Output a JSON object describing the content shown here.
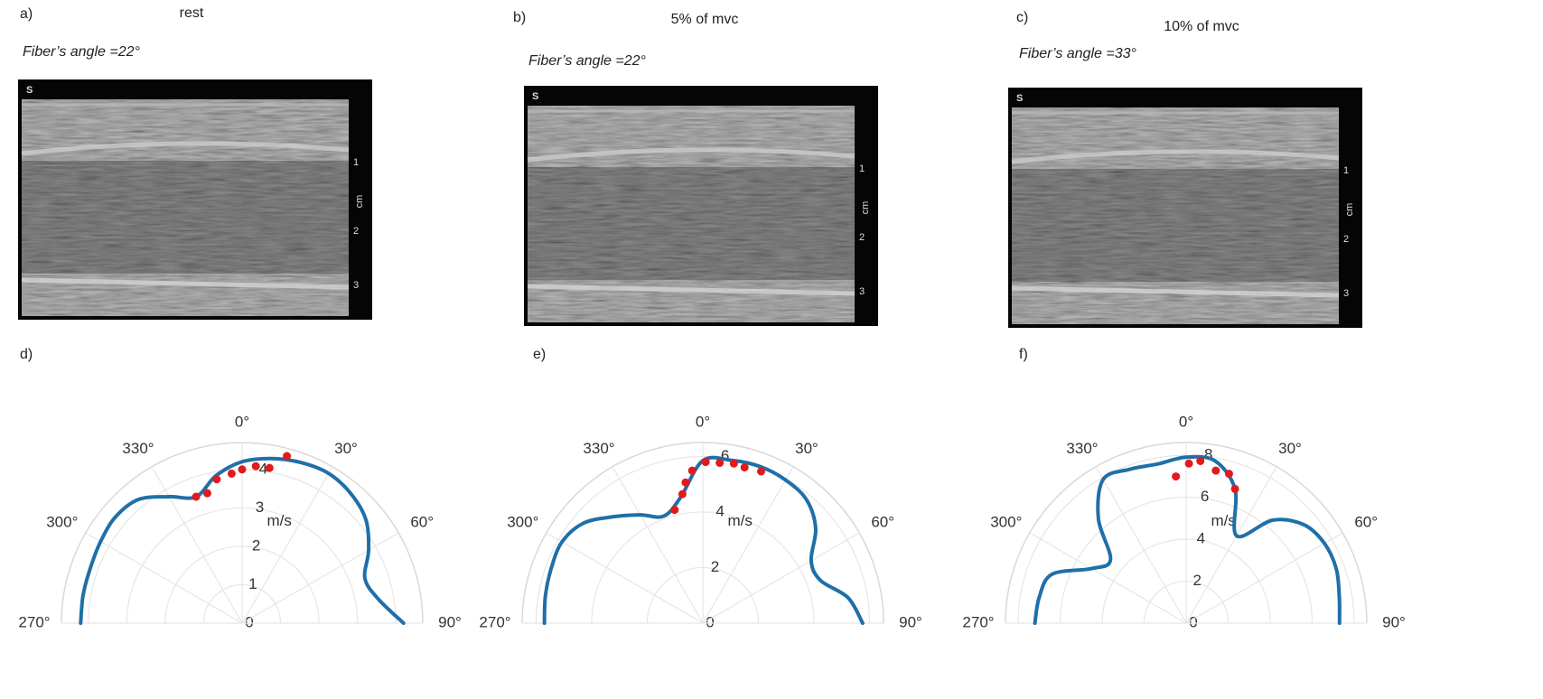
{
  "panels": [
    {
      "label": "a)",
      "condition": "rest",
      "angle_text": "Fiber’s angle =22°",
      "image": {
        "corner": "S",
        "depth_ticks": [
          "1",
          "2",
          "3"
        ],
        "unit": "cm"
      }
    },
    {
      "label": "b)",
      "condition": "5% of mvc",
      "angle_text": "Fiber’s angle =22°",
      "image": {
        "corner": "S",
        "depth_ticks": [
          "1",
          "2",
          "3"
        ],
        "unit": "cm"
      }
    },
    {
      "label": "c)",
      "condition": "10% of mvc",
      "angle_text": "Fiber’s angle =33°",
      "image": {
        "corner": "S",
        "depth_ticks": [
          "1",
          "2",
          "3"
        ],
        "unit": "cm"
      }
    }
  ],
  "chart_data": [
    {
      "type": "polar",
      "label": "d)",
      "r_label": "m/s",
      "rlim": [
        0,
        4.7
      ],
      "rticks": [
        0,
        1,
        2,
        3,
        4
      ],
      "thetaticks": [
        {
          "value": -90,
          "label": "270°"
        },
        {
          "value": -60,
          "label": "300°"
        },
        {
          "value": -30,
          "label": "330°"
        },
        {
          "value": 0,
          "label": "0°"
        },
        {
          "value": 30,
          "label": "30°"
        },
        {
          "value": 60,
          "label": "60°"
        },
        {
          "value": 90,
          "label": "90°"
        }
      ],
      "line": {
        "color": "#1f6fa8",
        "theta": [
          -90,
          -80,
          -70,
          -60,
          -50,
          -40,
          -30,
          -20,
          -10,
          0,
          10,
          20,
          30,
          40,
          50,
          60,
          70,
          80,
          90
        ],
        "values": [
          4.2,
          4.2,
          4.2,
          4.25,
          4.3,
          4.2,
          3.8,
          3.5,
          3.9,
          4.2,
          4.35,
          4.45,
          4.5,
          4.4,
          4.2,
          3.8,
          3.4,
          3.6,
          4.2
        ]
      },
      "points": {
        "color": "#e31a1c",
        "theta": [
          -20,
          -15,
          -10,
          -4,
          0,
          5,
          10,
          15
        ],
        "values": [
          3.5,
          3.5,
          3.8,
          3.9,
          4.0,
          4.1,
          4.1,
          4.5
        ]
      }
    },
    {
      "type": "polar",
      "label": "e)",
      "r_label": "m/s",
      "rlim": [
        0,
        6.5
      ],
      "rticks": [
        0,
        2,
        4,
        6
      ],
      "thetaticks": [
        {
          "value": -90,
          "label": "270°"
        },
        {
          "value": -60,
          "label": "300°"
        },
        {
          "value": -30,
          "label": "330°"
        },
        {
          "value": 0,
          "label": "0°"
        },
        {
          "value": 30,
          "label": "30°"
        },
        {
          "value": 60,
          "label": "60°"
        },
        {
          "value": 90,
          "label": "90°"
        }
      ],
      "line": {
        "color": "#1f6fa8",
        "theta": [
          -90,
          -80,
          -70,
          -60,
          -50,
          -40,
          -30,
          -20,
          -10,
          0,
          10,
          20,
          30,
          40,
          50,
          60,
          70,
          80,
          90
        ],
        "values": [
          5.7,
          5.75,
          5.8,
          5.85,
          5.6,
          5.0,
          4.5,
          4.1,
          4.6,
          5.85,
          5.95,
          6.0,
          5.95,
          5.8,
          5.3,
          4.5,
          4.5,
          5.3,
          5.75
        ]
      },
      "points": {
        "color": "#e31a1c",
        "theta": [
          -14,
          -9,
          -7,
          -4,
          1,
          6,
          11,
          15,
          21
        ],
        "values": [
          4.2,
          4.7,
          5.1,
          5.5,
          5.8,
          5.8,
          5.85,
          5.8,
          5.85
        ]
      }
    },
    {
      "type": "polar",
      "label": "f)",
      "r_label": "m/s",
      "rlim": [
        0,
        8.6
      ],
      "rticks": [
        0,
        2,
        4,
        6,
        8
      ],
      "thetaticks": [
        {
          "value": -90,
          "label": "270°"
        },
        {
          "value": -60,
          "label": "300°"
        },
        {
          "value": -30,
          "label": "330°"
        },
        {
          "value": 0,
          "label": "0°"
        },
        {
          "value": 30,
          "label": "30°"
        },
        {
          "value": 60,
          "label": "60°"
        },
        {
          "value": 90,
          "label": "90°"
        }
      ],
      "line": {
        "color": "#1f6fa8",
        "theta": [
          -90,
          -80,
          -70,
          -60,
          -50,
          -40,
          -30,
          -20,
          -10,
          0,
          10,
          20,
          30,
          40,
          50,
          60,
          70,
          80,
          90
        ],
        "values": [
          7.2,
          7.1,
          6.8,
          5.2,
          4.7,
          6.5,
          7.9,
          7.8,
          7.7,
          7.9,
          7.85,
          6.8,
          4.8,
          6.4,
          7.3,
          7.6,
          7.6,
          7.4,
          7.3
        ]
      },
      "points": {
        "color": "#e31a1c",
        "theta": [
          -4,
          1,
          5,
          11,
          16,
          20
        ],
        "values": [
          7.0,
          7.6,
          7.75,
          7.4,
          7.4,
          6.8
        ]
      }
    }
  ]
}
